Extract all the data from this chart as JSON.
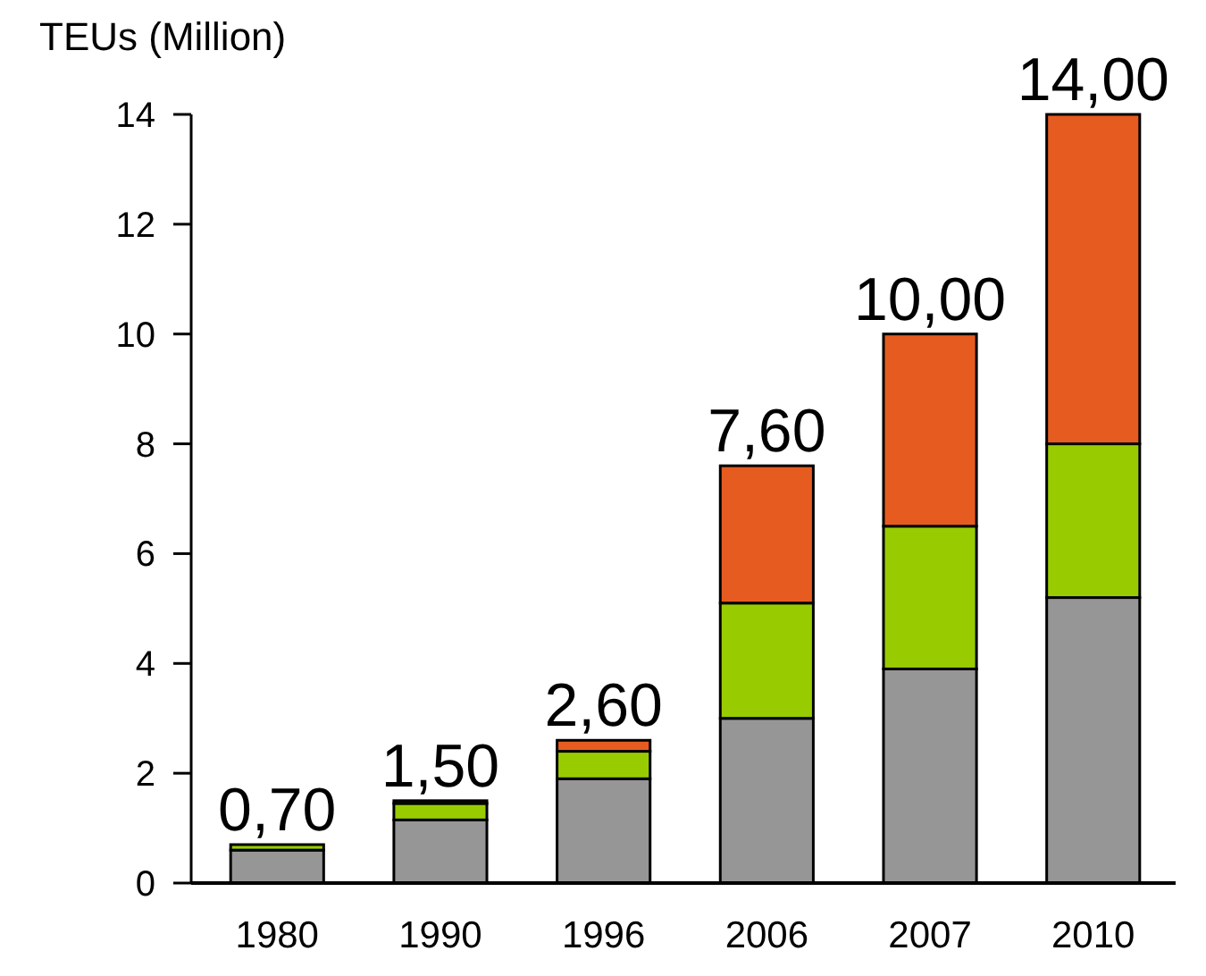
{
  "chart_data": {
    "type": "bar",
    "stacked": true,
    "ylabel": "TEUs (Million)",
    "categories": [
      "1980",
      "1990",
      "1996",
      "2006",
      "2007",
      "2010"
    ],
    "series": [
      {
        "color": "#969696",
        "values": [
          0.6,
          1.15,
          1.9,
          3.0,
          3.9,
          5.2
        ]
      },
      {
        "color": "#99cc00",
        "values": [
          0.1,
          0.3,
          0.5,
          2.1,
          2.6,
          2.8
        ]
      },
      {
        "color": "#e65c20",
        "values": [
          null,
          0.05,
          0.2,
          2.5,
          3.5,
          6.0
        ]
      }
    ],
    "totals": [
      "0,70",
      "1,50",
      "2,60",
      "7,60",
      "10,00",
      "14,00"
    ],
    "ylim": [
      0,
      14
    ],
    "yticks": [
      0,
      2,
      4,
      6,
      8,
      10,
      12,
      14
    ]
  }
}
